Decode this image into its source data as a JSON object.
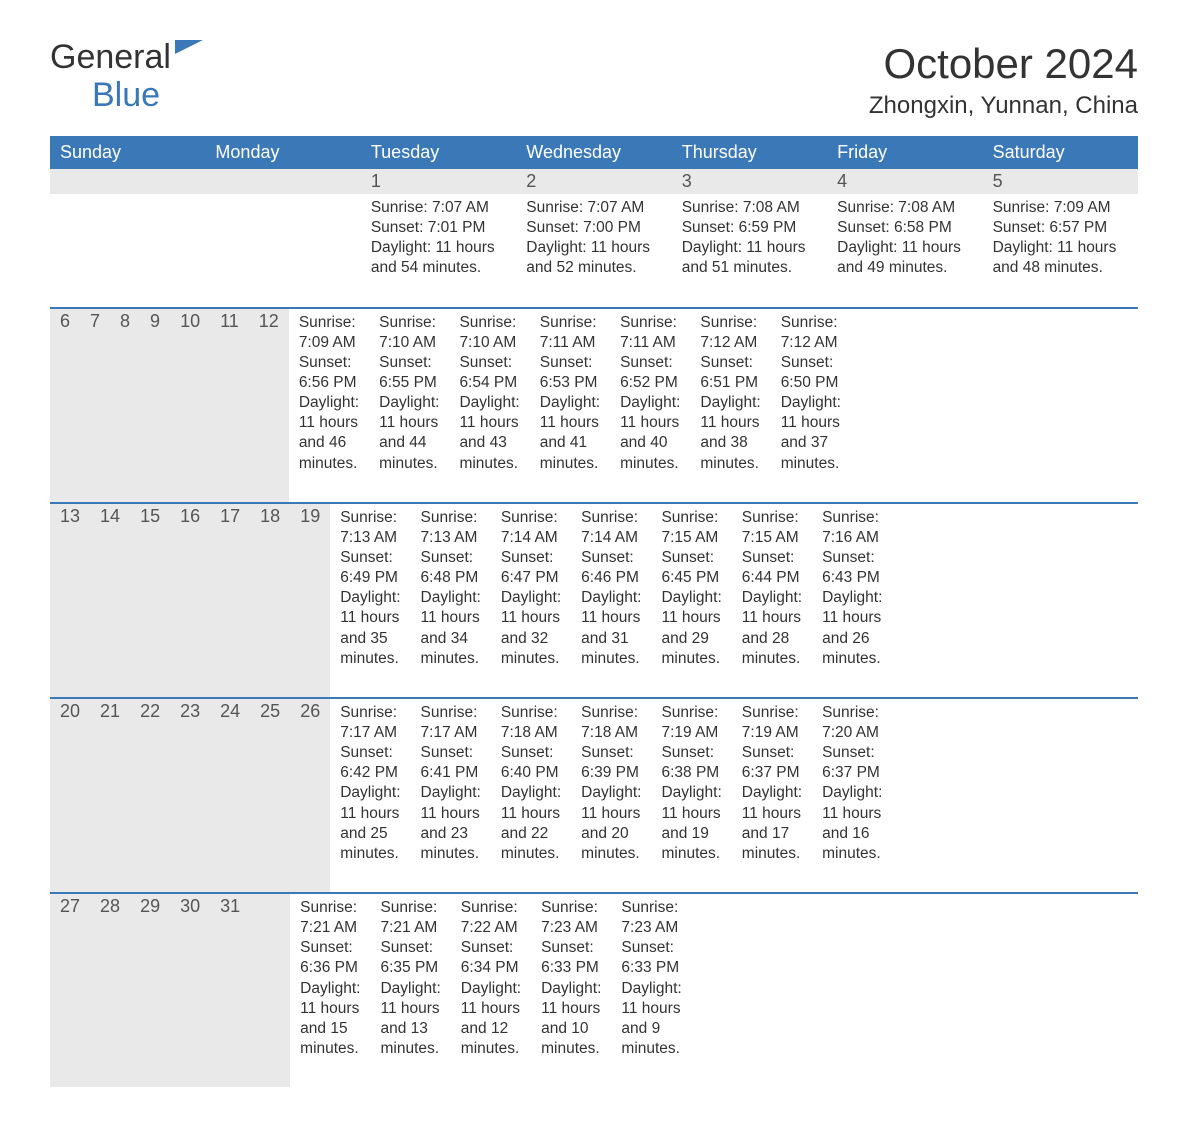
{
  "brand": {
    "general": "General",
    "blue": "Blue"
  },
  "title": "October 2024",
  "location": "Zhongxin, Yunnan, China",
  "colors": {
    "header_bg": "#3b78b8",
    "header_text": "#ffffff",
    "daynum_bg": "#e9e9e9",
    "text": "#333333",
    "week_border": "#3b78b8",
    "background": "#ffffff"
  },
  "days_of_week": [
    "Sunday",
    "Monday",
    "Tuesday",
    "Wednesday",
    "Thursday",
    "Friday",
    "Saturday"
  ],
  "weeks": [
    [
      {
        "n": "",
        "sunrise": "",
        "sunset": "",
        "daylight": ""
      },
      {
        "n": "",
        "sunrise": "",
        "sunset": "",
        "daylight": ""
      },
      {
        "n": "1",
        "sunrise": "Sunrise: 7:07 AM",
        "sunset": "Sunset: 7:01 PM",
        "daylight": "Daylight: 11 hours and 54 minutes."
      },
      {
        "n": "2",
        "sunrise": "Sunrise: 7:07 AM",
        "sunset": "Sunset: 7:00 PM",
        "daylight": "Daylight: 11 hours and 52 minutes."
      },
      {
        "n": "3",
        "sunrise": "Sunrise: 7:08 AM",
        "sunset": "Sunset: 6:59 PM",
        "daylight": "Daylight: 11 hours and 51 minutes."
      },
      {
        "n": "4",
        "sunrise": "Sunrise: 7:08 AM",
        "sunset": "Sunset: 6:58 PM",
        "daylight": "Daylight: 11 hours and 49 minutes."
      },
      {
        "n": "5",
        "sunrise": "Sunrise: 7:09 AM",
        "sunset": "Sunset: 6:57 PM",
        "daylight": "Daylight: 11 hours and 48 minutes."
      }
    ],
    [
      {
        "n": "6",
        "sunrise": "Sunrise: 7:09 AM",
        "sunset": "Sunset: 6:56 PM",
        "daylight": "Daylight: 11 hours and 46 minutes."
      },
      {
        "n": "7",
        "sunrise": "Sunrise: 7:10 AM",
        "sunset": "Sunset: 6:55 PM",
        "daylight": "Daylight: 11 hours and 44 minutes."
      },
      {
        "n": "8",
        "sunrise": "Sunrise: 7:10 AM",
        "sunset": "Sunset: 6:54 PM",
        "daylight": "Daylight: 11 hours and 43 minutes."
      },
      {
        "n": "9",
        "sunrise": "Sunrise: 7:11 AM",
        "sunset": "Sunset: 6:53 PM",
        "daylight": "Daylight: 11 hours and 41 minutes."
      },
      {
        "n": "10",
        "sunrise": "Sunrise: 7:11 AM",
        "sunset": "Sunset: 6:52 PM",
        "daylight": "Daylight: 11 hours and 40 minutes."
      },
      {
        "n": "11",
        "sunrise": "Sunrise: 7:12 AM",
        "sunset": "Sunset: 6:51 PM",
        "daylight": "Daylight: 11 hours and 38 minutes."
      },
      {
        "n": "12",
        "sunrise": "Sunrise: 7:12 AM",
        "sunset": "Sunset: 6:50 PM",
        "daylight": "Daylight: 11 hours and 37 minutes."
      }
    ],
    [
      {
        "n": "13",
        "sunrise": "Sunrise: 7:13 AM",
        "sunset": "Sunset: 6:49 PM",
        "daylight": "Daylight: 11 hours and 35 minutes."
      },
      {
        "n": "14",
        "sunrise": "Sunrise: 7:13 AM",
        "sunset": "Sunset: 6:48 PM",
        "daylight": "Daylight: 11 hours and 34 minutes."
      },
      {
        "n": "15",
        "sunrise": "Sunrise: 7:14 AM",
        "sunset": "Sunset: 6:47 PM",
        "daylight": "Daylight: 11 hours and 32 minutes."
      },
      {
        "n": "16",
        "sunrise": "Sunrise: 7:14 AM",
        "sunset": "Sunset: 6:46 PM",
        "daylight": "Daylight: 11 hours and 31 minutes."
      },
      {
        "n": "17",
        "sunrise": "Sunrise: 7:15 AM",
        "sunset": "Sunset: 6:45 PM",
        "daylight": "Daylight: 11 hours and 29 minutes."
      },
      {
        "n": "18",
        "sunrise": "Sunrise: 7:15 AM",
        "sunset": "Sunset: 6:44 PM",
        "daylight": "Daylight: 11 hours and 28 minutes."
      },
      {
        "n": "19",
        "sunrise": "Sunrise: 7:16 AM",
        "sunset": "Sunset: 6:43 PM",
        "daylight": "Daylight: 11 hours and 26 minutes."
      }
    ],
    [
      {
        "n": "20",
        "sunrise": "Sunrise: 7:17 AM",
        "sunset": "Sunset: 6:42 PM",
        "daylight": "Daylight: 11 hours and 25 minutes."
      },
      {
        "n": "21",
        "sunrise": "Sunrise: 7:17 AM",
        "sunset": "Sunset: 6:41 PM",
        "daylight": "Daylight: 11 hours and 23 minutes."
      },
      {
        "n": "22",
        "sunrise": "Sunrise: 7:18 AM",
        "sunset": "Sunset: 6:40 PM",
        "daylight": "Daylight: 11 hours and 22 minutes."
      },
      {
        "n": "23",
        "sunrise": "Sunrise: 7:18 AM",
        "sunset": "Sunset: 6:39 PM",
        "daylight": "Daylight: 11 hours and 20 minutes."
      },
      {
        "n": "24",
        "sunrise": "Sunrise: 7:19 AM",
        "sunset": "Sunset: 6:38 PM",
        "daylight": "Daylight: 11 hours and 19 minutes."
      },
      {
        "n": "25",
        "sunrise": "Sunrise: 7:19 AM",
        "sunset": "Sunset: 6:37 PM",
        "daylight": "Daylight: 11 hours and 17 minutes."
      },
      {
        "n": "26",
        "sunrise": "Sunrise: 7:20 AM",
        "sunset": "Sunset: 6:37 PM",
        "daylight": "Daylight: 11 hours and 16 minutes."
      }
    ],
    [
      {
        "n": "27",
        "sunrise": "Sunrise: 7:21 AM",
        "sunset": "Sunset: 6:36 PM",
        "daylight": "Daylight: 11 hours and 15 minutes."
      },
      {
        "n": "28",
        "sunrise": "Sunrise: 7:21 AM",
        "sunset": "Sunset: 6:35 PM",
        "daylight": "Daylight: 11 hours and 13 minutes."
      },
      {
        "n": "29",
        "sunrise": "Sunrise: 7:22 AM",
        "sunset": "Sunset: 6:34 PM",
        "daylight": "Daylight: 11 hours and 12 minutes."
      },
      {
        "n": "30",
        "sunrise": "Sunrise: 7:23 AM",
        "sunset": "Sunset: 6:33 PM",
        "daylight": "Daylight: 11 hours and 10 minutes."
      },
      {
        "n": "31",
        "sunrise": "Sunrise: 7:23 AM",
        "sunset": "Sunset: 6:33 PM",
        "daylight": "Daylight: 11 hours and 9 minutes."
      },
      {
        "n": "",
        "sunrise": "",
        "sunset": "",
        "daylight": ""
      },
      {
        "n": "",
        "sunrise": "",
        "sunset": "",
        "daylight": ""
      }
    ]
  ]
}
